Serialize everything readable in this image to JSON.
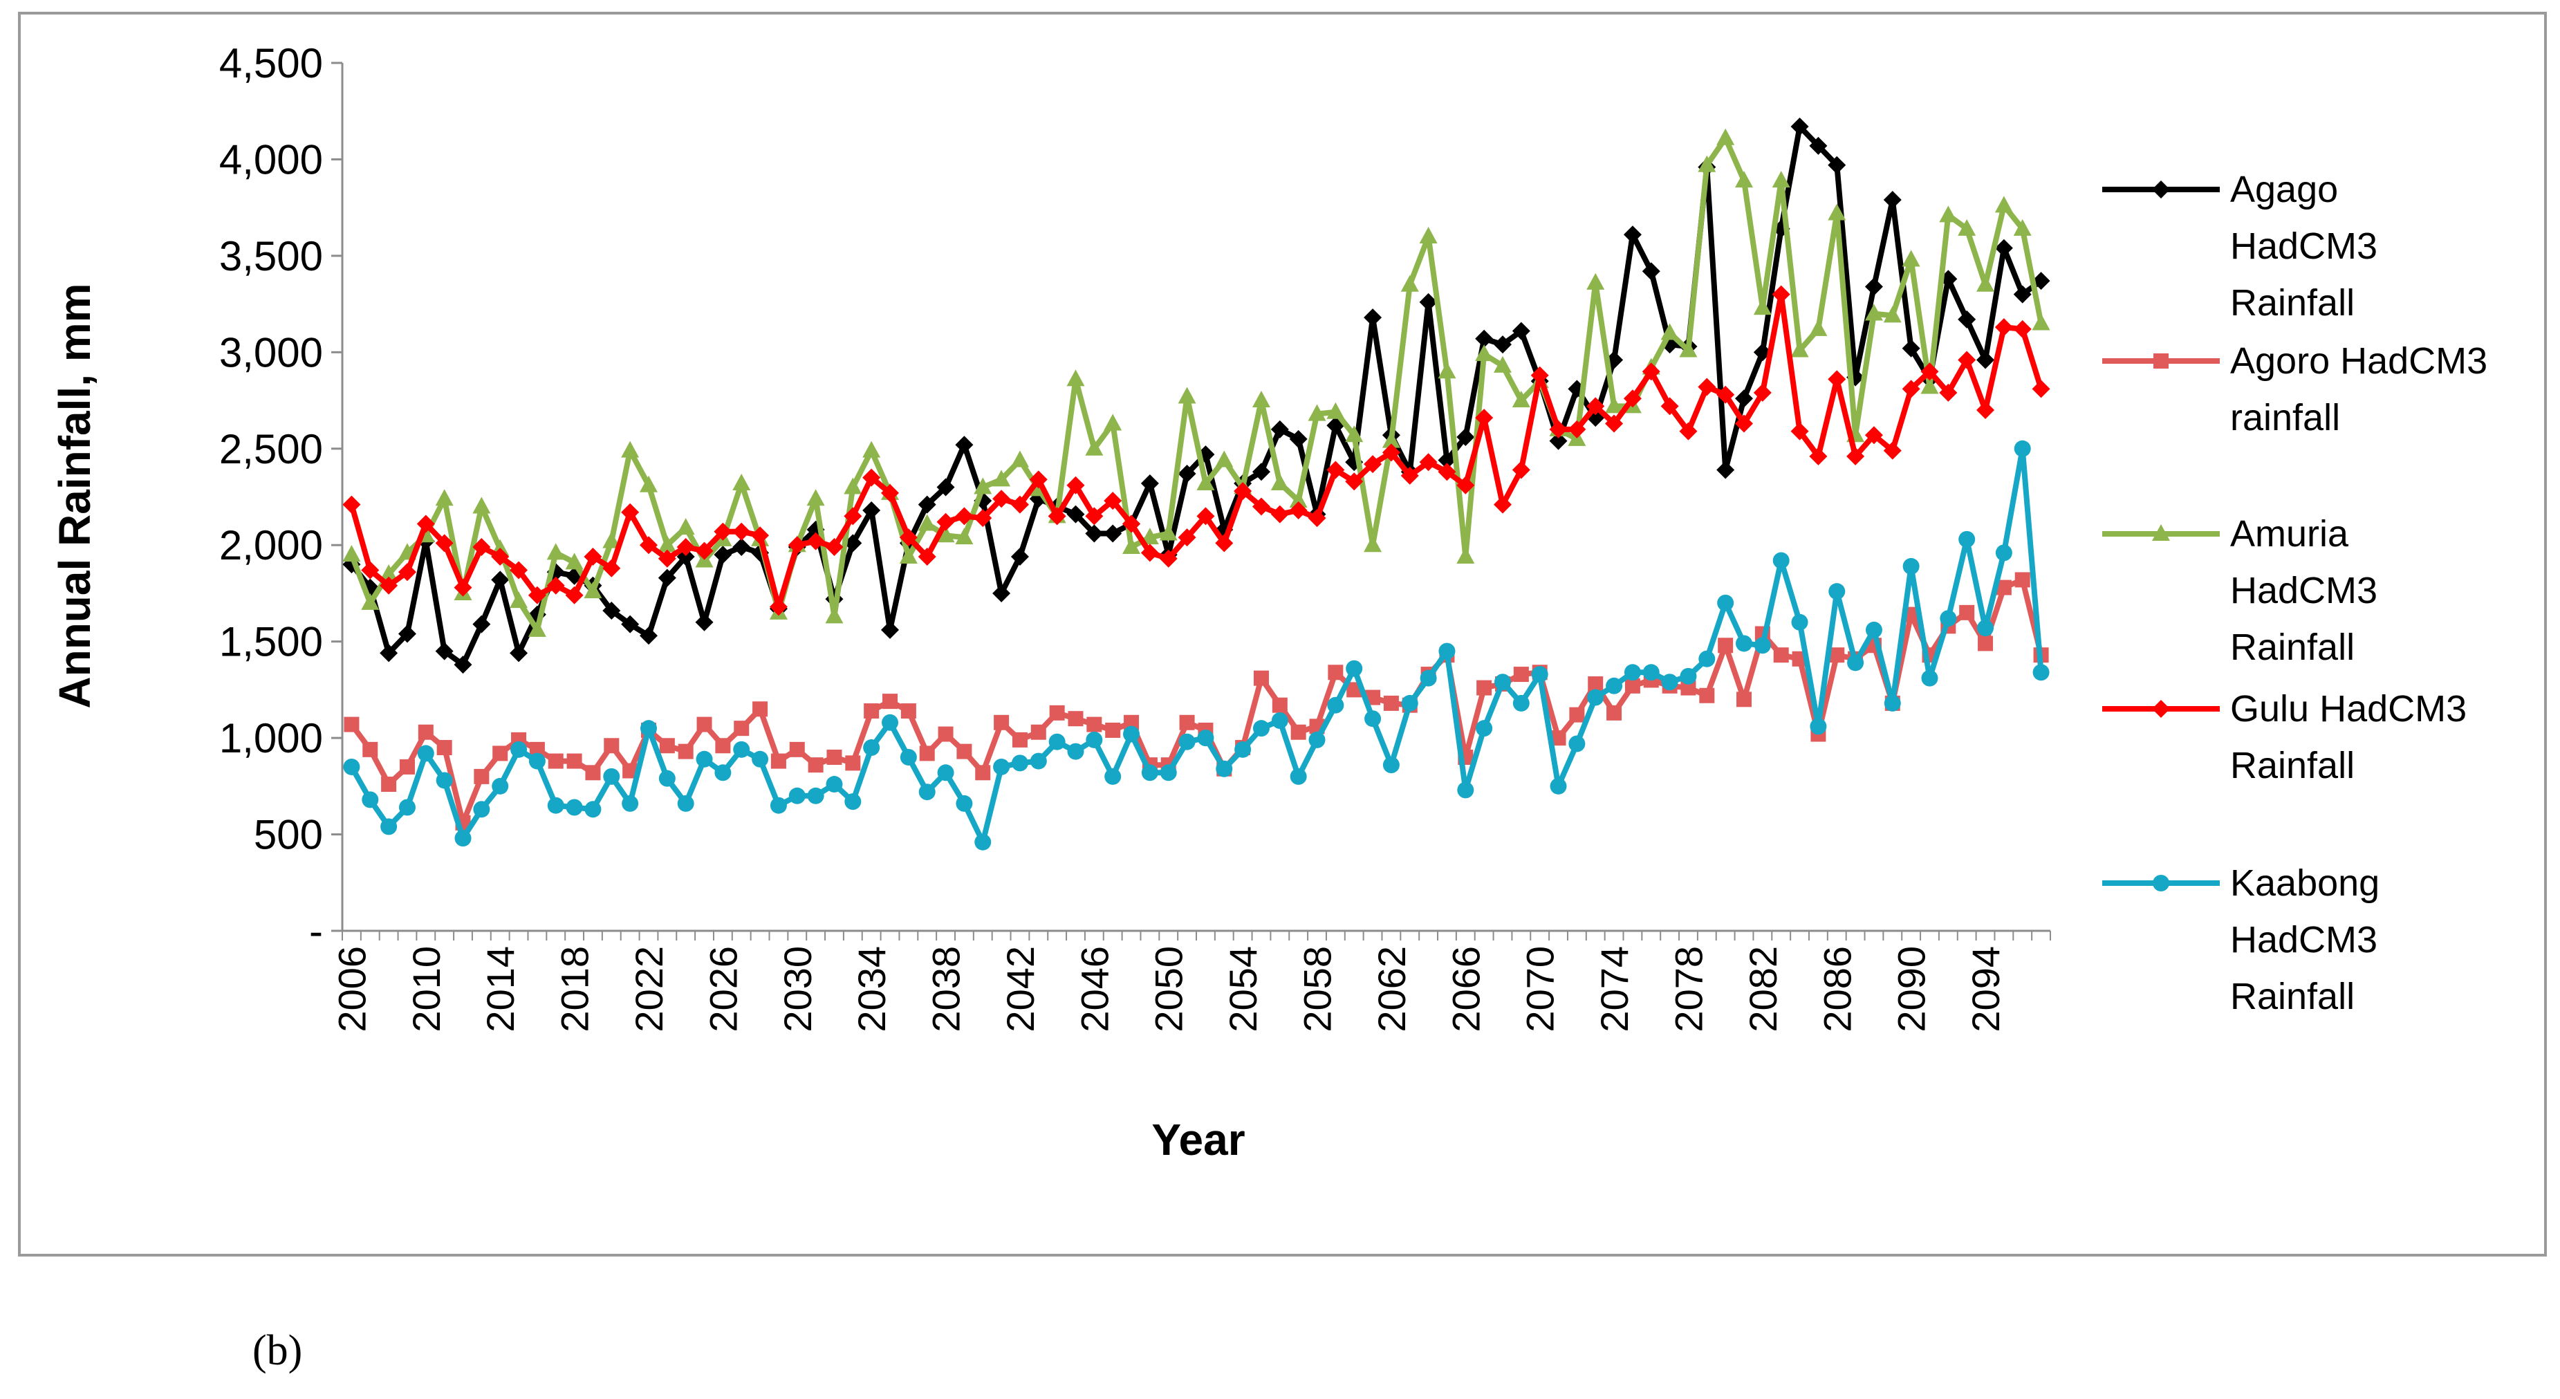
{
  "chart_data": {
    "type": "line",
    "title": "",
    "xlabel": "Year",
    "ylabel": "Annual Rainfall, mm",
    "ylim": [
      0,
      4500
    ],
    "y_ticks": [
      {
        "value": 0,
        "label": "-"
      },
      {
        "value": 500,
        "label": "500"
      },
      {
        "value": 1000,
        "label": "1,000"
      },
      {
        "value": 1500,
        "label": "1,500"
      },
      {
        "value": 2000,
        "label": "2,000"
      },
      {
        "value": 2500,
        "label": "2,500"
      },
      {
        "value": 3000,
        "label": "3,000"
      },
      {
        "value": 3500,
        "label": "3,500"
      },
      {
        "value": 4000,
        "label": "4,000"
      },
      {
        "value": 4500,
        "label": "4,500"
      }
    ],
    "x_ticks": [
      "2006",
      "2010",
      "2014",
      "2018",
      "2022",
      "2026",
      "2030",
      "2034",
      "2038",
      "2042",
      "2046",
      "2050",
      "2054",
      "2058",
      "2062",
      "2066",
      "2070",
      "2074",
      "2078",
      "2082",
      "2086",
      "2090",
      "2094"
    ],
    "x_start": 2006,
    "x_end": 2097,
    "legend_position": "right",
    "series": [
      {
        "name": "Agago HadCM3 Rainfall",
        "legend_lines": [
          "Agago",
          "HadCM3",
          "Rainfall"
        ],
        "color": "#000000",
        "marker": "diamond",
        "values": [
          1900,
          1780,
          1440,
          1540,
          2020,
          1450,
          1380,
          1590,
          1820,
          1440,
          1640,
          1860,
          1840,
          1790,
          1660,
          1590,
          1530,
          1830,
          1940,
          1600,
          1950,
          1990,
          1960,
          1670,
          1990,
          2080,
          1720,
          2010,
          2180,
          1560,
          2010,
          2210,
          2300,
          2520,
          2230,
          1750,
          1940,
          2240,
          2200,
          2160,
          2060,
          2060,
          2110,
          2320,
          1950,
          2370,
          2470,
          2080,
          2320,
          2380,
          2600,
          2550,
          2160,
          2620,
          2430,
          3180,
          2570,
          2380,
          3260,
          2440,
          2560,
          3070,
          3040,
          3110,
          2850,
          2540,
          2810,
          2660,
          2960,
          3610,
          3420,
          3040,
          3030,
          3960,
          2390,
          2760,
          3000,
          3640,
          4170,
          4070,
          3970,
          2870,
          3340,
          3790,
          3020,
          2860,
          3380,
          3170,
          2960,
          3540,
          3300,
          3370
        ]
      },
      {
        "name": "Agoro HadCM3 rainfall",
        "legend_lines": [
          "Agoro HadCM3",
          "rainfall"
        ],
        "color": "#e05a5a",
        "marker": "square",
        "values": [
          1070,
          940,
          760,
          850,
          1030,
          950,
          560,
          800,
          920,
          990,
          940,
          880,
          880,
          820,
          960,
          830,
          1040,
          960,
          930,
          1070,
          960,
          1050,
          1150,
          880,
          940,
          860,
          900,
          870,
          1140,
          1190,
          1140,
          920,
          1020,
          930,
          820,
          1080,
          990,
          1030,
          1130,
          1100,
          1070,
          1040,
          1080,
          860,
          860,
          1080,
          1040,
          840,
          950,
          1310,
          1170,
          1030,
          1060,
          1340,
          1250,
          1210,
          1180,
          1170,
          1330,
          1430,
          900,
          1260,
          1280,
          1330,
          1340,
          1000,
          1120,
          1280,
          1130,
          1270,
          1300,
          1270,
          1260,
          1220,
          1480,
          1200,
          1540,
          1430,
          1410,
          1020,
          1430,
          1410,
          1480,
          1180,
          1640,
          1430,
          1580,
          1650,
          1490,
          1780,
          1820,
          1430
        ]
      },
      {
        "name": "Amuria HadCM3 Rainfall",
        "legend_lines": [
          "Amuria",
          "HadCM3",
          "Rainfall"
        ],
        "color": "#8db54b",
        "marker": "triangle",
        "values": [
          1950,
          1700,
          1850,
          1960,
          2050,
          2240,
          1750,
          2200,
          1980,
          1710,
          1560,
          1960,
          1910,
          1760,
          2020,
          2490,
          2310,
          2000,
          2090,
          1920,
          2030,
          2320,
          2030,
          1650,
          2000,
          2240,
          1630,
          2300,
          2490,
          2270,
          1940,
          2110,
          2050,
          2040,
          2300,
          2340,
          2440,
          2290,
          2150,
          2860,
          2500,
          2630,
          1990,
          2040,
          2060,
          2770,
          2320,
          2440,
          2300,
          2750,
          2320,
          2230,
          2680,
          2690,
          2570,
          2000,
          2540,
          3350,
          3600,
          2900,
          1940,
          2990,
          2930,
          2750,
          2850,
          2600,
          2550,
          3360,
          2720,
          2720,
          2920,
          3100,
          3010,
          3970,
          4110,
          3890,
          3230,
          3890,
          3010,
          3120,
          3720,
          2570,
          3200,
          3190,
          3480,
          2820,
          3710,
          3640,
          3350,
          3760,
          3640,
          3150
        ]
      },
      {
        "name": "Gulu HadCM3 Rainfall",
        "legend_lines": [
          "Gulu HadCM3",
          "Rainfall"
        ],
        "color": "#ff0000",
        "marker": "diamond",
        "values": [
          2210,
          1870,
          1790,
          1860,
          2110,
          2010,
          1780,
          1990,
          1940,
          1870,
          1740,
          1790,
          1740,
          1940,
          1880,
          2170,
          2000,
          1930,
          1990,
          1970,
          2070,
          2070,
          2050,
          1680,
          2000,
          2020,
          1990,
          2150,
          2350,
          2270,
          2040,
          1940,
          2120,
          2150,
          2140,
          2240,
          2210,
          2340,
          2150,
          2310,
          2150,
          2230,
          2110,
          1960,
          1930,
          2040,
          2150,
          2010,
          2280,
          2200,
          2160,
          2180,
          2140,
          2390,
          2330,
          2420,
          2480,
          2360,
          2430,
          2380,
          2310,
          2660,
          2210,
          2390,
          2880,
          2600,
          2600,
          2720,
          2630,
          2760,
          2900,
          2720,
          2590,
          2820,
          2780,
          2630,
          2790,
          3300,
          2590,
          2460,
          2860,
          2460,
          2570,
          2490,
          2810,
          2900,
          2790,
          2960,
          2700,
          3130,
          3120,
          2810
        ]
      },
      {
        "name": "Kaabong HadCM3 Rainfall",
        "legend_lines": [
          "Kaabong",
          "HadCM3",
          "Rainfall"
        ],
        "color": "#17a7c6",
        "marker": "circle",
        "values": [
          850,
          680,
          540,
          640,
          920,
          780,
          480,
          630,
          750,
          940,
          880,
          650,
          640,
          630,
          800,
          660,
          1050,
          790,
          660,
          890,
          820,
          940,
          890,
          650,
          700,
          700,
          760,
          670,
          950,
          1080,
          900,
          720,
          820,
          660,
          460,
          850,
          870,
          880,
          980,
          930,
          990,
          800,
          1020,
          820,
          820,
          980,
          1000,
          840,
          940,
          1050,
          1090,
          800,
          990,
          1170,
          1360,
          1100,
          860,
          1180,
          1310,
          1450,
          730,
          1050,
          1290,
          1180,
          1330,
          750,
          970,
          1210,
          1270,
          1340,
          1340,
          1290,
          1320,
          1410,
          1700,
          1490,
          1480,
          1920,
          1600,
          1060,
          1760,
          1390,
          1560,
          1180,
          1890,
          1310,
          1620,
          2030,
          1570,
          1960,
          2500,
          1340
        ]
      }
    ]
  },
  "caption": "(b)"
}
